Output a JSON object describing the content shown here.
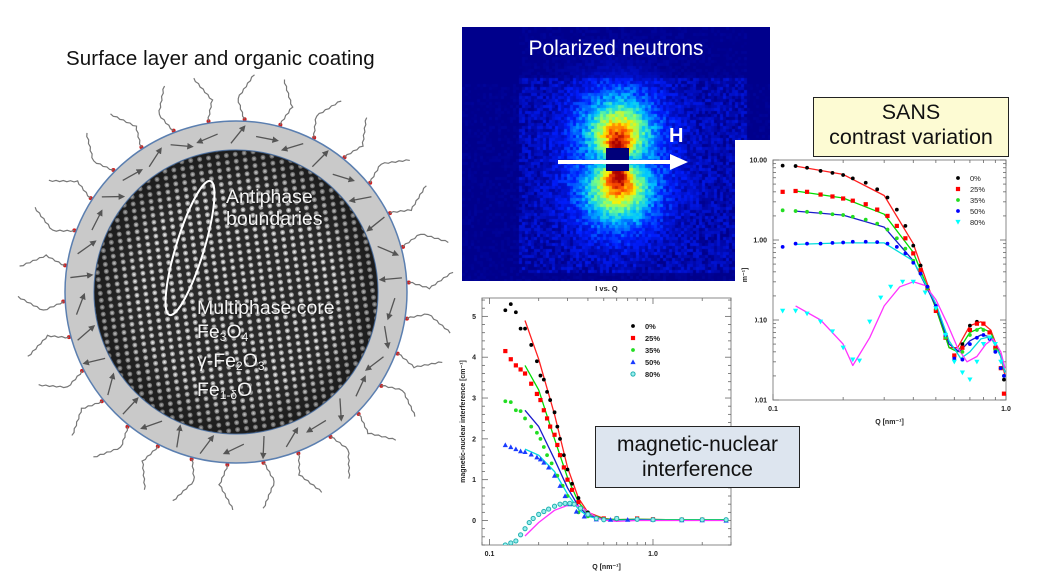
{
  "left_panel": {
    "title": "Surface layer and organic coating",
    "annotations": {
      "antiphase_line1": "Antiphase",
      "antiphase_line2": "boundaries",
      "core_heading": "Multiphase core",
      "phases": [
        "Fe3O4",
        "γ-Fe2O3",
        "Fe1-δO"
      ]
    },
    "colors": {
      "shell": "#c9c9c9",
      "shell_border": "#5b7fb0",
      "arrow": "#555555",
      "ligand": "#777777",
      "ligand_head": "#cc2222"
    }
  },
  "neutron_panel": {
    "title": "Polarized neutrons",
    "field_label": "H",
    "background": "#00008c"
  },
  "callouts": {
    "sans_line1": "SANS",
    "sans_line2": "contrast variation",
    "mag_line1": "magnetic-nuclear",
    "mag_line2": "interference"
  },
  "chart_data": [
    {
      "id": "sans",
      "type": "scatter",
      "title": "",
      "xlabel": "Q [nm⁻¹]",
      "ylabel": "I [cm⁻¹]",
      "xscale": "log",
      "yscale": "log",
      "xlim": [
        0.1,
        1.0
      ],
      "ylim": [
        0.01,
        10.0
      ],
      "xticks": [
        "0.1",
        "1.0"
      ],
      "yticks": [
        "0.01",
        "0.10",
        "1.00",
        "10.00"
      ],
      "legend_position": "upper right",
      "series": [
        {
          "name": "0%",
          "color": "#000000",
          "fit_color": "#ff2020",
          "marker": "circle",
          "x": [
            0.11,
            0.125,
            0.14,
            0.16,
            0.18,
            0.2,
            0.22,
            0.25,
            0.28,
            0.31,
            0.34,
            0.37,
            0.4,
            0.43,
            0.46,
            0.5,
            0.55,
            0.6,
            0.65,
            0.7,
            0.75,
            0.8,
            0.85,
            0.9,
            0.95,
            0.98
          ],
          "y": [
            8.5,
            8.4,
            8.0,
            7.3,
            6.9,
            6.5,
            5.9,
            5.2,
            4.3,
            3.4,
            2.4,
            1.5,
            0.85,
            0.48,
            0.26,
            0.13,
            0.06,
            0.035,
            0.05,
            0.085,
            0.095,
            0.09,
            0.07,
            0.045,
            0.025,
            0.018
          ]
        },
        {
          "name": "25%",
          "color": "#ff0000",
          "fit_color": "#00dd00",
          "marker": "square",
          "x": [
            0.11,
            0.125,
            0.14,
            0.16,
            0.18,
            0.2,
            0.22,
            0.25,
            0.28,
            0.31,
            0.34,
            0.37,
            0.4,
            0.43,
            0.46,
            0.5,
            0.55,
            0.6,
            0.65,
            0.7,
            0.75,
            0.8,
            0.85,
            0.9,
            0.95,
            0.98
          ],
          "y": [
            4.0,
            4.1,
            4.0,
            3.7,
            3.5,
            3.3,
            3.1,
            2.8,
            2.4,
            2.0,
            1.5,
            1.05,
            0.68,
            0.42,
            0.25,
            0.13,
            0.06,
            0.036,
            0.045,
            0.075,
            0.09,
            0.09,
            0.07,
            0.045,
            0.025,
            0.012
          ]
        },
        {
          "name": "35%",
          "color": "#22dd22",
          "fit_color": "#1a1acc",
          "marker": "circle",
          "x": [
            0.11,
            0.125,
            0.14,
            0.16,
            0.18,
            0.2,
            0.22,
            0.25,
            0.28,
            0.31,
            0.34,
            0.37,
            0.4,
            0.43,
            0.46,
            0.5,
            0.55,
            0.6,
            0.65,
            0.7,
            0.75,
            0.8,
            0.85,
            0.9,
            0.95,
            0.98
          ],
          "y": [
            2.35,
            2.3,
            2.25,
            2.2,
            2.1,
            2.05,
            1.95,
            1.8,
            1.6,
            1.35,
            1.05,
            0.78,
            0.55,
            0.38,
            0.25,
            0.14,
            0.06,
            0.032,
            0.04,
            0.065,
            0.075,
            0.075,
            0.06,
            0.042,
            0.025,
            0.02
          ]
        },
        {
          "name": "50%",
          "color": "#0000ff",
          "fit_color": "#00dddd",
          "marker": "circle",
          "x": [
            0.11,
            0.125,
            0.14,
            0.16,
            0.18,
            0.2,
            0.22,
            0.25,
            0.28,
            0.31,
            0.34,
            0.37,
            0.4,
            0.43,
            0.46,
            0.5,
            0.55,
            0.6,
            0.65,
            0.7,
            0.75,
            0.8,
            0.85,
            0.9,
            0.95,
            0.98
          ],
          "y": [
            0.82,
            0.9,
            0.9,
            0.9,
            0.92,
            0.93,
            0.95,
            0.95,
            0.94,
            0.9,
            0.82,
            0.68,
            0.52,
            0.38,
            0.26,
            0.15,
            0.065,
            0.033,
            0.032,
            0.05,
            0.06,
            0.065,
            0.058,
            0.04,
            0.025,
            0.02
          ]
        },
        {
          "name": "80%",
          "color": "#00ffff",
          "fit_color": "#ff33ff",
          "marker": "triangle-down",
          "x": [
            0.11,
            0.125,
            0.14,
            0.16,
            0.18,
            0.2,
            0.22,
            0.235,
            0.26,
            0.29,
            0.32,
            0.36,
            0.4,
            0.45,
            0.5,
            0.55,
            0.6,
            0.65,
            0.7,
            0.75,
            0.8,
            0.85,
            0.9,
            0.95
          ],
          "y": [
            0.13,
            0.13,
            0.12,
            0.095,
            0.072,
            0.045,
            0.032,
            0.031,
            0.095,
            0.19,
            0.26,
            0.3,
            0.3,
            0.22,
            0.14,
            0.065,
            0.03,
            0.022,
            0.018,
            0.03,
            0.05,
            0.06,
            0.05,
            0.03
          ]
        }
      ],
      "fits": [
        {
          "color": "#ff2020",
          "x": [
            0.125,
            0.2,
            0.3,
            0.4,
            0.5,
            0.57,
            0.62,
            0.7,
            0.78,
            0.86,
            0.95,
            0.99
          ],
          "y": [
            8.4,
            6.6,
            3.6,
            0.9,
            0.14,
            0.045,
            0.045,
            0.085,
            0.095,
            0.075,
            0.035,
            0.02
          ]
        },
        {
          "color": "#00dd00",
          "x": [
            0.125,
            0.2,
            0.3,
            0.4,
            0.5,
            0.57,
            0.62,
            0.7,
            0.78,
            0.86,
            0.95,
            0.99
          ],
          "y": [
            4.1,
            3.35,
            2.1,
            0.7,
            0.14,
            0.045,
            0.04,
            0.07,
            0.08,
            0.07,
            0.035,
            0.022
          ]
        },
        {
          "color": "#1a1acc",
          "x": [
            0.125,
            0.2,
            0.3,
            0.4,
            0.5,
            0.57,
            0.63,
            0.7,
            0.78,
            0.86,
            0.95,
            0.99
          ],
          "y": [
            2.3,
            2.05,
            1.45,
            0.55,
            0.15,
            0.05,
            0.04,
            0.055,
            0.065,
            0.062,
            0.035,
            0.022
          ]
        },
        {
          "color": "#00dddd",
          "x": [
            0.125,
            0.2,
            0.3,
            0.4,
            0.5,
            0.57,
            0.64,
            0.7,
            0.78,
            0.86,
            0.95,
            0.99
          ],
          "y": [
            0.88,
            0.92,
            0.92,
            0.55,
            0.16,
            0.055,
            0.033,
            0.04,
            0.058,
            0.062,
            0.035,
            0.022
          ]
        },
        {
          "color": "#ff33ff",
          "x": [
            0.125,
            0.16,
            0.2,
            0.22,
            0.26,
            0.3,
            0.35,
            0.4,
            0.45,
            0.5,
            0.56,
            0.62,
            0.68,
            0.75,
            0.82,
            0.88,
            0.95,
            0.99
          ],
          "y": [
            0.15,
            0.1,
            0.05,
            0.027,
            0.06,
            0.15,
            0.26,
            0.3,
            0.27,
            0.18,
            0.09,
            0.045,
            0.03,
            0.035,
            0.05,
            0.058,
            0.04,
            0.025
          ]
        }
      ]
    },
    {
      "id": "magnetic_nuclear",
      "type": "scatter",
      "title": "I vs. Q",
      "xlabel": "Q [nm⁻¹]",
      "ylabel": "magnetic-nuclear interference [cm⁻¹]",
      "xscale": "log",
      "yscale": "linear",
      "xlim": [
        0.09,
        3.0
      ],
      "ylim": [
        -0.6,
        5.45
      ],
      "xticks": [
        "0.1",
        "1.0"
      ],
      "yticks": [
        "0",
        "1",
        "2",
        "3",
        "4",
        "5"
      ],
      "legend_position": "upper right",
      "series": [
        {
          "name": "0%",
          "color": "#000000",
          "marker": "circle",
          "x": [
            0.125,
            0.135,
            0.145,
            0.155,
            0.165,
            0.18,
            0.195,
            0.205,
            0.215,
            0.225,
            0.235,
            0.25,
            0.26,
            0.27,
            0.285,
            0.3,
            0.32,
            0.35,
            0.4,
            0.5,
            0.6,
            0.8,
            1.0,
            1.5,
            2.0,
            2.8
          ],
          "y": [
            5.15,
            5.3,
            5.1,
            4.7,
            4.7,
            4.3,
            3.9,
            3.55,
            3.45,
            3.15,
            2.95,
            2.65,
            2.3,
            2.0,
            1.6,
            1.25,
            0.9,
            0.55,
            0.2,
            0.05,
            0.03,
            0.03,
            0.02,
            0.02,
            0.02,
            0.0
          ]
        },
        {
          "name": "25%",
          "color": "#ff0000",
          "marker": "square",
          "x": [
            0.125,
            0.135,
            0.145,
            0.155,
            0.165,
            0.18,
            0.195,
            0.205,
            0.215,
            0.225,
            0.235,
            0.25,
            0.26,
            0.27,
            0.285,
            0.3,
            0.32,
            0.35,
            0.4,
            0.5,
            0.6,
            0.8,
            1.0,
            1.5,
            2.0,
            2.8
          ],
          "y": [
            4.15,
            3.95,
            3.8,
            3.7,
            3.6,
            3.35,
            3.1,
            2.95,
            2.7,
            2.5,
            2.3,
            2.1,
            1.85,
            1.6,
            1.3,
            1.0,
            0.75,
            0.45,
            0.15,
            0.05,
            0.05,
            0.05,
            0.03,
            0.02,
            0.02,
            0.01
          ]
        },
        {
          "name": "35%",
          "color": "#22dd22",
          "marker": "circle",
          "x": [
            0.125,
            0.135,
            0.145,
            0.155,
            0.165,
            0.18,
            0.195,
            0.205,
            0.215,
            0.225,
            0.24,
            0.26,
            0.28,
            0.3,
            0.32,
            0.35,
            0.4,
            0.5,
            0.6,
            0.8,
            1.0,
            1.5,
            2.0,
            2.8
          ],
          "y": [
            2.92,
            2.9,
            2.7,
            2.68,
            2.5,
            2.3,
            2.15,
            2.0,
            1.8,
            1.6,
            1.4,
            1.1,
            0.85,
            0.6,
            0.4,
            0.2,
            0.1,
            0.04,
            0.03,
            0.03,
            0.02,
            0.02,
            0.01,
            0.01
          ]
        },
        {
          "name": "50%",
          "color": "#1a3cff",
          "marker": "triangle",
          "x": [
            0.125,
            0.135,
            0.145,
            0.155,
            0.165,
            0.18,
            0.195,
            0.205,
            0.215,
            0.23,
            0.25,
            0.27,
            0.29,
            0.31,
            0.34,
            0.38,
            0.45,
            0.55,
            0.7,
            1.0,
            1.5,
            2.0,
            2.8
          ],
          "y": [
            1.85,
            1.8,
            1.75,
            1.7,
            1.68,
            1.62,
            1.55,
            1.5,
            1.42,
            1.3,
            1.1,
            0.85,
            0.6,
            0.4,
            0.22,
            0.1,
            0.03,
            0.02,
            0.02,
            0.02,
            0.01,
            0.01,
            0.0
          ]
        },
        {
          "name": "80%",
          "color": "#20b0b0",
          "marker": "circle-open",
          "x": [
            0.125,
            0.135,
            0.145,
            0.155,
            0.165,
            0.175,
            0.185,
            0.2,
            0.215,
            0.23,
            0.25,
            0.27,
            0.29,
            0.31,
            0.33,
            0.36,
            0.4,
            0.45,
            0.5,
            0.6,
            0.8,
            1.0,
            1.5,
            2.0,
            2.8
          ],
          "y": [
            -0.6,
            -0.55,
            -0.5,
            -0.35,
            -0.2,
            -0.05,
            0.05,
            0.15,
            0.22,
            0.28,
            0.35,
            0.4,
            0.42,
            0.42,
            0.4,
            0.3,
            0.15,
            0.05,
            0.02,
            0.05,
            0.03,
            0.02,
            0.02,
            0.02,
            0.02
          ]
        }
      ],
      "fits": [
        {
          "color": "#ff2020",
          "x": [
            0.165,
            0.2,
            0.25,
            0.3,
            0.35,
            0.4,
            0.5,
            0.6,
            0.8,
            1.2,
            2.0,
            2.8
          ],
          "y": [
            4.9,
            3.95,
            2.6,
            1.3,
            0.55,
            0.2,
            0.05,
            0.02,
            0.03,
            0.02,
            0.02,
            0.02
          ]
        },
        {
          "color": "#00dd00",
          "x": [
            0.165,
            0.2,
            0.25,
            0.3,
            0.35,
            0.4,
            0.5,
            0.6,
            0.8,
            1.2,
            2.0,
            2.8
          ],
          "y": [
            3.8,
            3.2,
            2.0,
            1.05,
            0.45,
            0.17,
            0.04,
            0.02,
            0.03,
            0.02,
            0.02,
            0.02
          ]
        },
        {
          "color": "#1a1acc",
          "x": [
            0.165,
            0.2,
            0.25,
            0.3,
            0.35,
            0.4,
            0.5,
            0.6,
            0.8,
            1.2,
            2.0,
            2.8
          ],
          "y": [
            2.7,
            2.3,
            1.5,
            0.8,
            0.35,
            0.12,
            0.03,
            0.0,
            0.02,
            0.01,
            0.01,
            0.01
          ]
        },
        {
          "color": "#00dddd",
          "x": [
            0.165,
            0.2,
            0.25,
            0.3,
            0.35,
            0.4,
            0.5,
            0.6,
            0.8,
            1.2,
            2.0,
            2.8
          ],
          "y": [
            1.75,
            1.6,
            1.2,
            0.65,
            0.28,
            0.1,
            0.02,
            0.0,
            0.01,
            0.01,
            0.01,
            0.01
          ]
        },
        {
          "color": "#ff33ff",
          "x": [
            0.165,
            0.2,
            0.25,
            0.3,
            0.33,
            0.36,
            0.4,
            0.45,
            0.5,
            0.6,
            0.8,
            1.2,
            2.0,
            2.8
          ],
          "y": [
            -0.38,
            -0.05,
            0.25,
            0.37,
            0.38,
            0.34,
            0.22,
            0.08,
            0.01,
            -0.02,
            0.0,
            0.0,
            0.0,
            0.0
          ]
        }
      ]
    }
  ]
}
